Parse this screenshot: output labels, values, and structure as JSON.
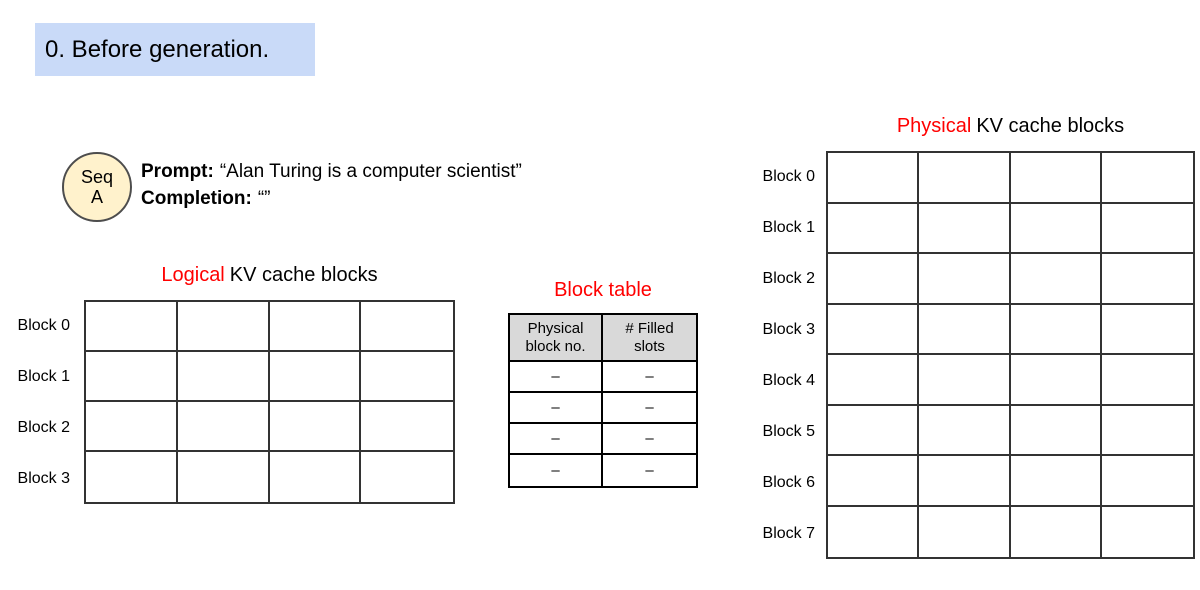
{
  "step_banner": {
    "label": "0. Before generation.",
    "bg": "#c9daf8"
  },
  "sequence": {
    "badge": {
      "line1": "Seq",
      "line2": "A",
      "bg": "#fff2cc"
    },
    "prompt_label": "Prompt:",
    "prompt_text": "“Alan Turing is a computer scientist”",
    "completion_label": "Completion:",
    "completion_text": "“”"
  },
  "logical": {
    "title_highlight": "Logical",
    "title_rest": "KV cache blocks",
    "rows": [
      "Block 0",
      "Block 1",
      "Block 2",
      "Block 3"
    ],
    "cols": 4
  },
  "block_table": {
    "title": "Block table",
    "header": [
      "Physical\nblock no.",
      "# Filled\nslots"
    ],
    "rows": [
      [
        "–",
        "–"
      ],
      [
        "–",
        "–"
      ],
      [
        "–",
        "–"
      ],
      [
        "–",
        "–"
      ]
    ]
  },
  "physical": {
    "title_highlight": "Physical",
    "title_rest": "KV cache blocks",
    "rows": [
      "Block 0",
      "Block 1",
      "Block 2",
      "Block 3",
      "Block 4",
      "Block 5",
      "Block 6",
      "Block 7"
    ],
    "cols": 4
  },
  "colors": {
    "accent_red": "#ff0000",
    "banner_bg": "#c9daf8",
    "badge_bg": "#fff2cc",
    "header_bg": "#d9d9d9",
    "grid_line": "#333333",
    "table_line": "#000000"
  }
}
